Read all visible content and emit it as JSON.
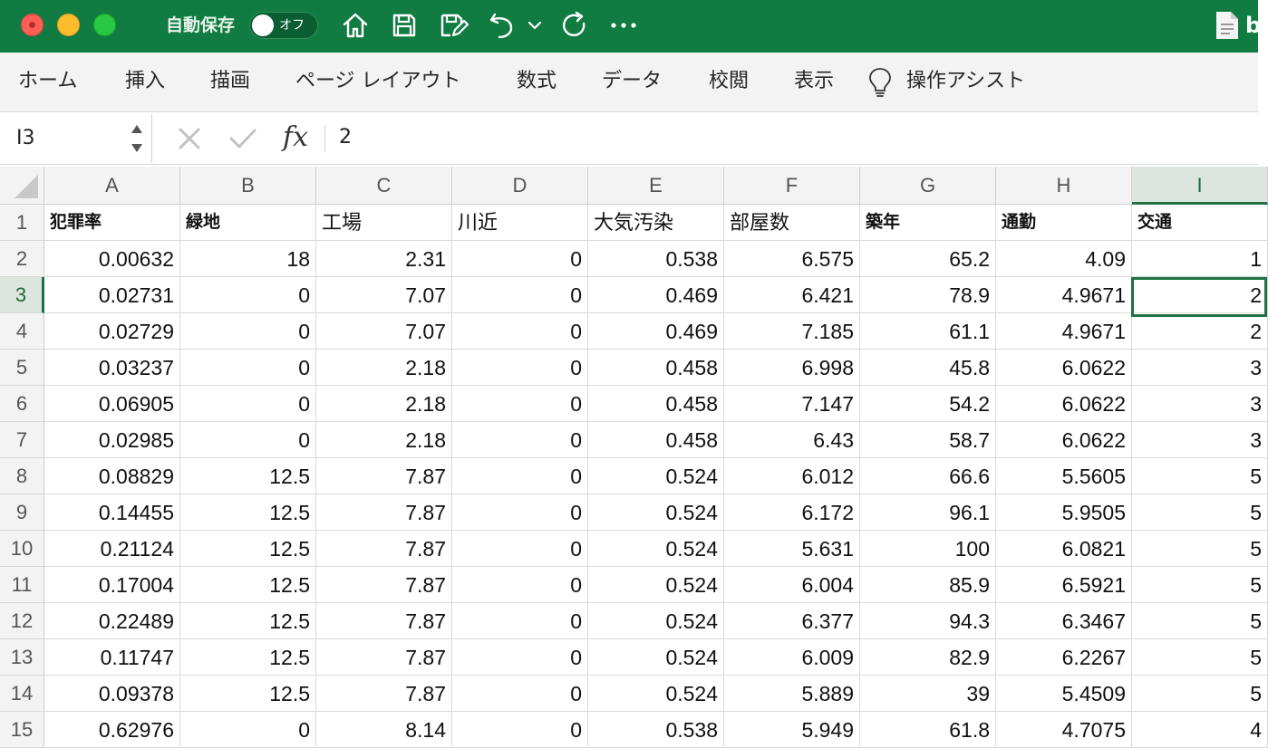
{
  "titlebar": {
    "autosave_label": "自動保存",
    "autosave_state": "オフ",
    "doc_partial_title": "b",
    "accent": "#107c41"
  },
  "ribbon": {
    "tabs": [
      "ホーム",
      "挿入",
      "描画",
      "ページ レイアウト",
      "数式",
      "データ",
      "校閲",
      "表示",
      "操作アシスト"
    ]
  },
  "formula_bar": {
    "name_box": "I3",
    "fx": "fx",
    "value": "2"
  },
  "grid": {
    "columns": [
      "A",
      "B",
      "C",
      "D",
      "E",
      "F",
      "G",
      "H",
      "I"
    ],
    "selected_column": "I",
    "selected_row": "3",
    "row_numbers": [
      "1",
      "2",
      "3",
      "4",
      "5",
      "6",
      "7",
      "8",
      "9",
      "10",
      "11",
      "12",
      "13",
      "14",
      "15"
    ],
    "header_row": [
      "犯罪率",
      "緑地",
      "工場",
      "川近",
      "大気汚染",
      "部屋数",
      "築年",
      "通勤",
      "交通"
    ],
    "rows": [
      [
        "0.00632",
        "18",
        "2.31",
        "0",
        "0.538",
        "6.575",
        "65.2",
        "4.09",
        "1"
      ],
      [
        "0.02731",
        "0",
        "7.07",
        "0",
        "0.469",
        "6.421",
        "78.9",
        "4.9671",
        "2"
      ],
      [
        "0.02729",
        "0",
        "7.07",
        "0",
        "0.469",
        "7.185",
        "61.1",
        "4.9671",
        "2"
      ],
      [
        "0.03237",
        "0",
        "2.18",
        "0",
        "0.458",
        "6.998",
        "45.8",
        "6.0622",
        "3"
      ],
      [
        "0.06905",
        "0",
        "2.18",
        "0",
        "0.458",
        "7.147",
        "54.2",
        "6.0622",
        "3"
      ],
      [
        "0.02985",
        "0",
        "2.18",
        "0",
        "0.458",
        "6.43",
        "58.7",
        "6.0622",
        "3"
      ],
      [
        "0.08829",
        "12.5",
        "7.87",
        "0",
        "0.524",
        "6.012",
        "66.6",
        "5.5605",
        "5"
      ],
      [
        "0.14455",
        "12.5",
        "7.87",
        "0",
        "0.524",
        "6.172",
        "96.1",
        "5.9505",
        "5"
      ],
      [
        "0.21124",
        "12.5",
        "7.87",
        "0",
        "0.524",
        "5.631",
        "100",
        "6.0821",
        "5"
      ],
      [
        "0.17004",
        "12.5",
        "7.87",
        "0",
        "0.524",
        "6.004",
        "85.9",
        "6.5921",
        "5"
      ],
      [
        "0.22489",
        "12.5",
        "7.87",
        "0",
        "0.524",
        "6.377",
        "94.3",
        "6.3467",
        "5"
      ],
      [
        "0.11747",
        "12.5",
        "7.87",
        "0",
        "0.524",
        "6.009",
        "82.9",
        "6.2267",
        "5"
      ],
      [
        "0.09378",
        "12.5",
        "7.87",
        "0",
        "0.524",
        "5.889",
        "39",
        "5.4509",
        "5"
      ],
      [
        "0.62976",
        "0",
        "8.14",
        "0",
        "0.538",
        "5.949",
        "61.8",
        "4.7075",
        "4"
      ]
    ]
  }
}
